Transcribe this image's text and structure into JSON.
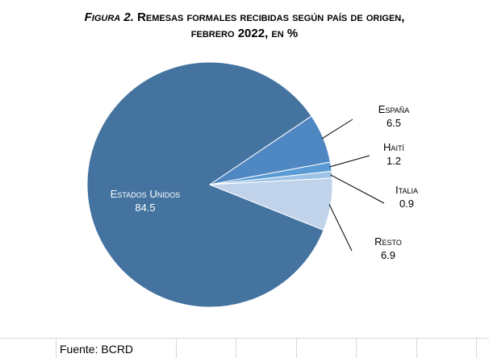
{
  "title": {
    "prefix": "Figura 2.",
    "line1": "Remesas formales recibidas según país de origen,",
    "line2": "febrero 2022, en %"
  },
  "source": "Fuente: BCRD",
  "chart_data": {
    "type": "pie",
    "title": "Figura 2. Remesas formales recibidas según país de origen, febrero 2022, en %",
    "slices": [
      {
        "label": "Estados Unidos",
        "value": 84.5,
        "display": "84.5",
        "color": "#44739f"
      },
      {
        "label": "España",
        "value": 6.5,
        "display": "6.5",
        "color": "#4f87c2"
      },
      {
        "label": "Haití",
        "value": 1.2,
        "display": "1.2",
        "color": "#5b9bd5"
      },
      {
        "label": "Italia",
        "value": 0.9,
        "display": "0.9",
        "color": "#9dc3e6"
      },
      {
        "label": "Resto",
        "value": 6.9,
        "display": "6.9",
        "color": "#c0d3ea"
      }
    ]
  }
}
